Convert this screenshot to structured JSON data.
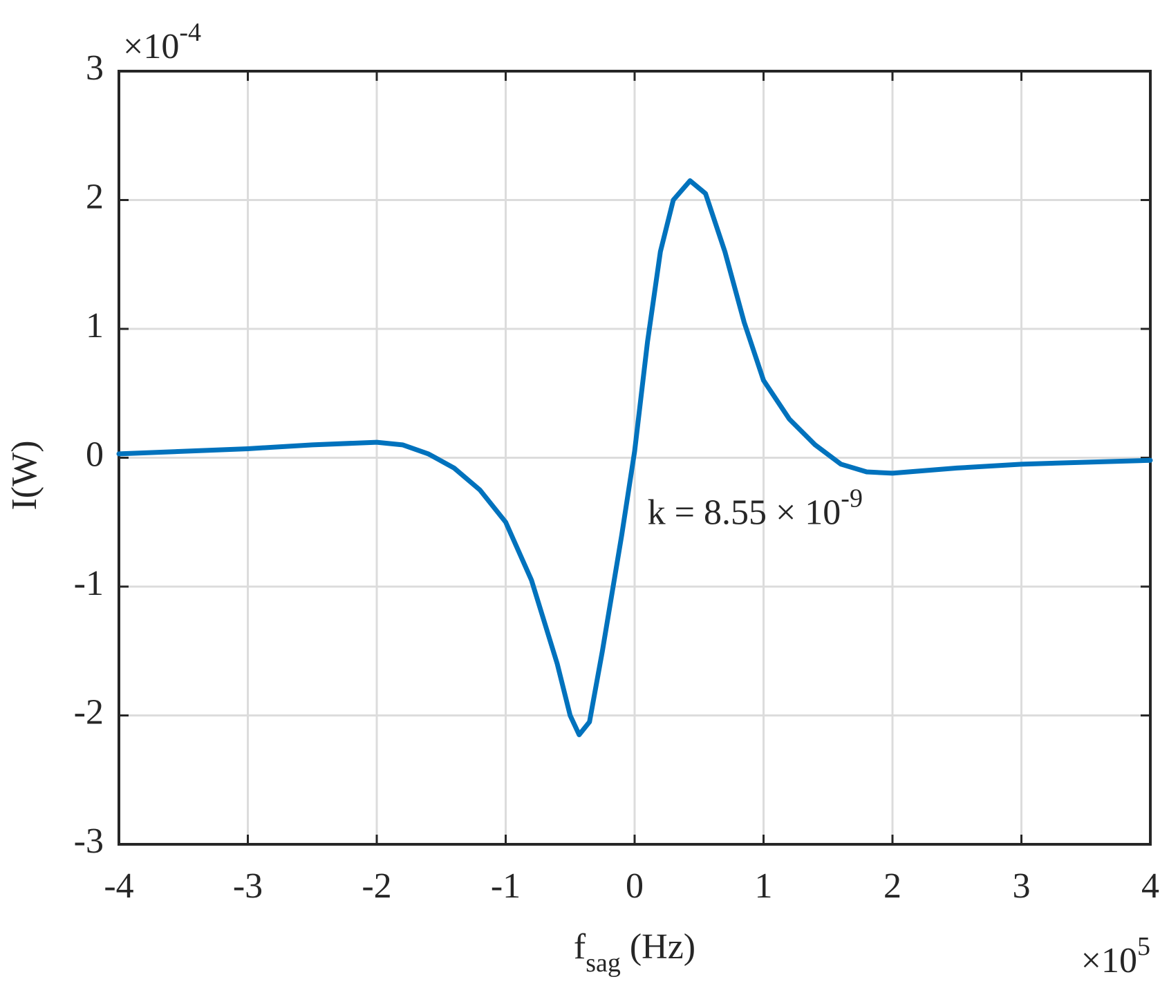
{
  "chart_data": {
    "type": "line",
    "x_label": {
      "main": "f",
      "subscript": "sag",
      "unit": " (Hz)"
    },
    "y_label": "I(W)",
    "x_multiplier": {
      "base": "×10",
      "exponent": "5"
    },
    "y_multiplier": {
      "base": "×10",
      "exponent": "-4"
    },
    "annotation": {
      "base": "k = 8.55 × 10",
      "exponent": "-9",
      "x": 0.1,
      "y": -0.45
    },
    "x": [
      -4,
      -3,
      -2.5,
      -2,
      -1.8,
      -1.6,
      -1.4,
      -1.2,
      -1.0,
      -0.8,
      -0.6,
      -0.5,
      -0.43,
      -0.35,
      -0.25,
      -0.1,
      0,
      0.1,
      0.2,
      0.3,
      0.43,
      0.55,
      0.7,
      0.85,
      1.0,
      1.2,
      1.4,
      1.6,
      1.8,
      2.0,
      2.5,
      3.0,
      4.0
    ],
    "series": [
      {
        "color": "#0072bd",
        "values": [
          0.03,
          0.07,
          0.1,
          0.12,
          0.1,
          0.03,
          -0.08,
          -0.25,
          -0.5,
          -0.95,
          -1.6,
          -2.0,
          -2.15,
          -2.05,
          -1.5,
          -0.6,
          0.05,
          0.9,
          1.6,
          2.0,
          2.15,
          2.05,
          1.6,
          1.05,
          0.6,
          0.3,
          0.1,
          -0.05,
          -0.11,
          -0.12,
          -0.08,
          -0.05,
          -0.02
        ]
      }
    ],
    "xlim": [
      -4,
      4
    ],
    "xticks": [
      -4,
      -3,
      -2,
      -1,
      0,
      1,
      2,
      3,
      4
    ],
    "ylim": [
      -3,
      3
    ],
    "yticks": [
      -3,
      -2,
      -1,
      0,
      1,
      2,
      3
    ],
    "grid": true
  }
}
